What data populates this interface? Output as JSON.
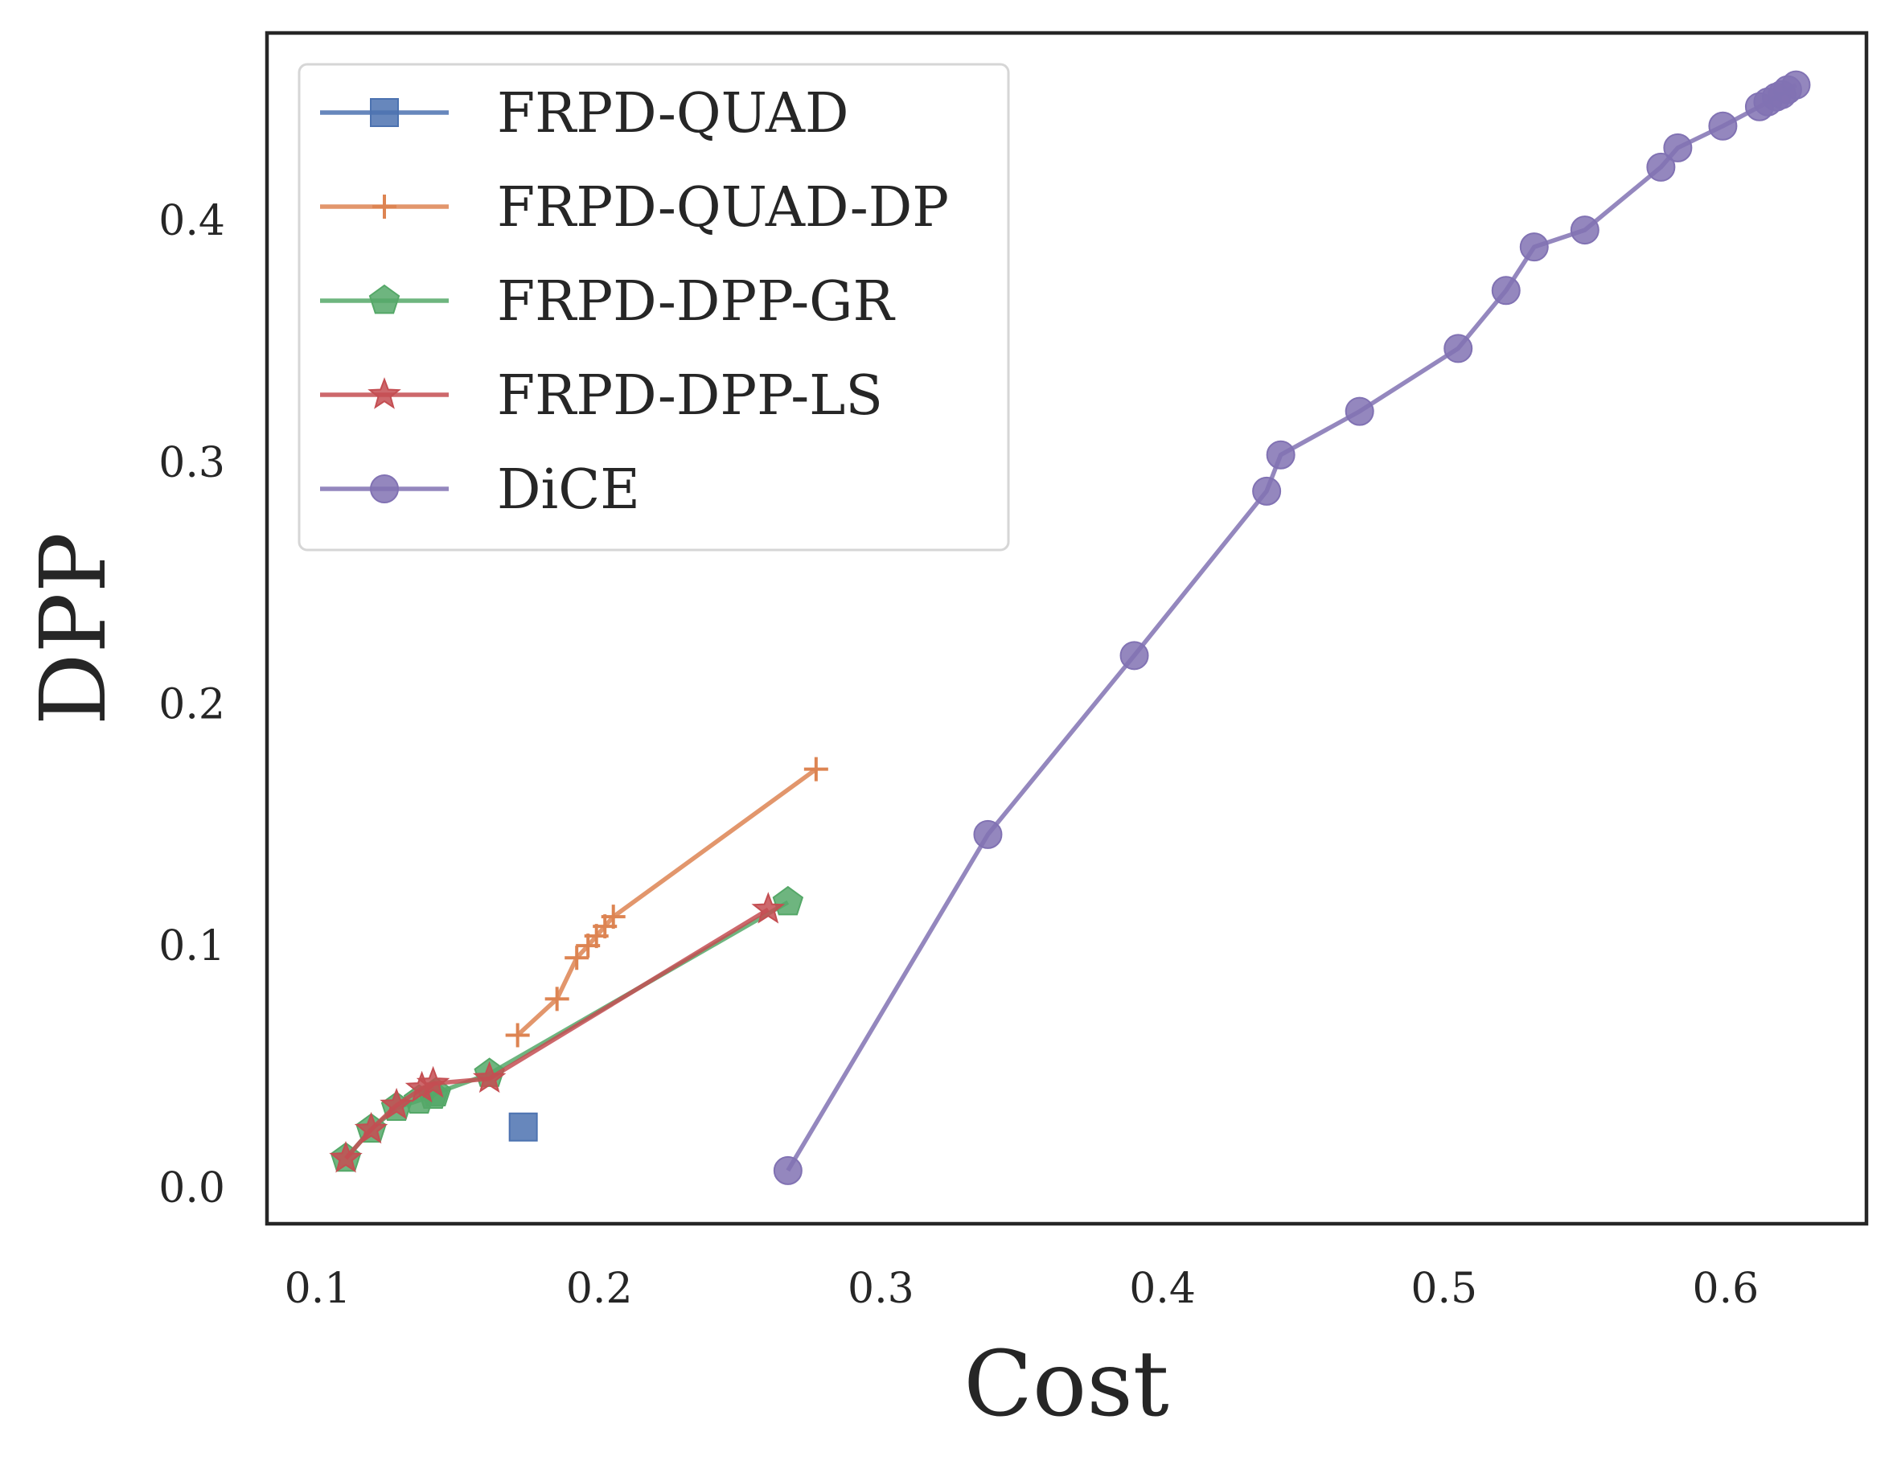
{
  "chart_data": {
    "type": "line",
    "xlabel": "Cost",
    "ylabel": "DPP",
    "xlim": [
      0.082,
      0.65
    ],
    "ylim": [
      -0.015,
      0.4775
    ],
    "xticks": [
      0.1,
      0.2,
      0.3,
      0.4,
      0.5,
      0.6
    ],
    "xtick_labels": [
      "0.1",
      "0.2",
      "0.3",
      "0.4",
      "0.5",
      "0.6"
    ],
    "yticks": [
      0.0,
      0.1,
      0.2,
      0.3,
      0.4
    ],
    "ytick_labels": [
      "0.0",
      "0.1",
      "0.2",
      "0.3",
      "0.4"
    ],
    "grid": false,
    "legend_position": "upper-left",
    "series": [
      {
        "name": "FRPD-QUAD",
        "color": "#4C72B0",
        "marker": "square",
        "points": [
          [
            0.173,
            0.025
          ]
        ]
      },
      {
        "name": "FRPD-QUAD-DP",
        "color": "#DD8452",
        "marker": "plus",
        "points": [
          [
            0.171,
            0.063
          ],
          [
            0.185,
            0.078
          ],
          [
            0.192,
            0.095
          ],
          [
            0.196,
            0.1
          ],
          [
            0.199,
            0.104
          ],
          [
            0.202,
            0.108
          ],
          [
            0.205,
            0.112
          ],
          [
            0.277,
            0.173
          ]
        ]
      },
      {
        "name": "FRPD-DPP-GR",
        "color": "#55A868",
        "marker": "pentagon",
        "points": [
          [
            0.11,
            0.012
          ],
          [
            0.119,
            0.024
          ],
          [
            0.128,
            0.033
          ],
          [
            0.136,
            0.036
          ],
          [
            0.141,
            0.038
          ],
          [
            0.142,
            0.039
          ],
          [
            0.161,
            0.047
          ],
          [
            0.267,
            0.118
          ]
        ]
      },
      {
        "name": "FRPD-DPP-LS",
        "color": "#C44E52",
        "marker": "star",
        "points": [
          [
            0.11,
            0.012
          ],
          [
            0.119,
            0.024
          ],
          [
            0.128,
            0.034
          ],
          [
            0.137,
            0.041
          ],
          [
            0.141,
            0.043
          ],
          [
            0.161,
            0.045
          ],
          [
            0.26,
            0.115
          ]
        ]
      },
      {
        "name": "DiCE",
        "color": "#8172B3",
        "marker": "circle",
        "points": [
          [
            0.267,
            0.007
          ],
          [
            0.338,
            0.146
          ],
          [
            0.39,
            0.22
          ],
          [
            0.437,
            0.288
          ],
          [
            0.442,
            0.303
          ],
          [
            0.47,
            0.321
          ],
          [
            0.505,
            0.347
          ],
          [
            0.522,
            0.371
          ],
          [
            0.532,
            0.389
          ],
          [
            0.55,
            0.396
          ],
          [
            0.577,
            0.422
          ],
          [
            0.583,
            0.43
          ],
          [
            0.599,
            0.439
          ],
          [
            0.612,
            0.447
          ],
          [
            0.615,
            0.449
          ],
          [
            0.618,
            0.451
          ],
          [
            0.62,
            0.452
          ],
          [
            0.622,
            0.454
          ],
          [
            0.625,
            0.456
          ]
        ]
      }
    ]
  }
}
